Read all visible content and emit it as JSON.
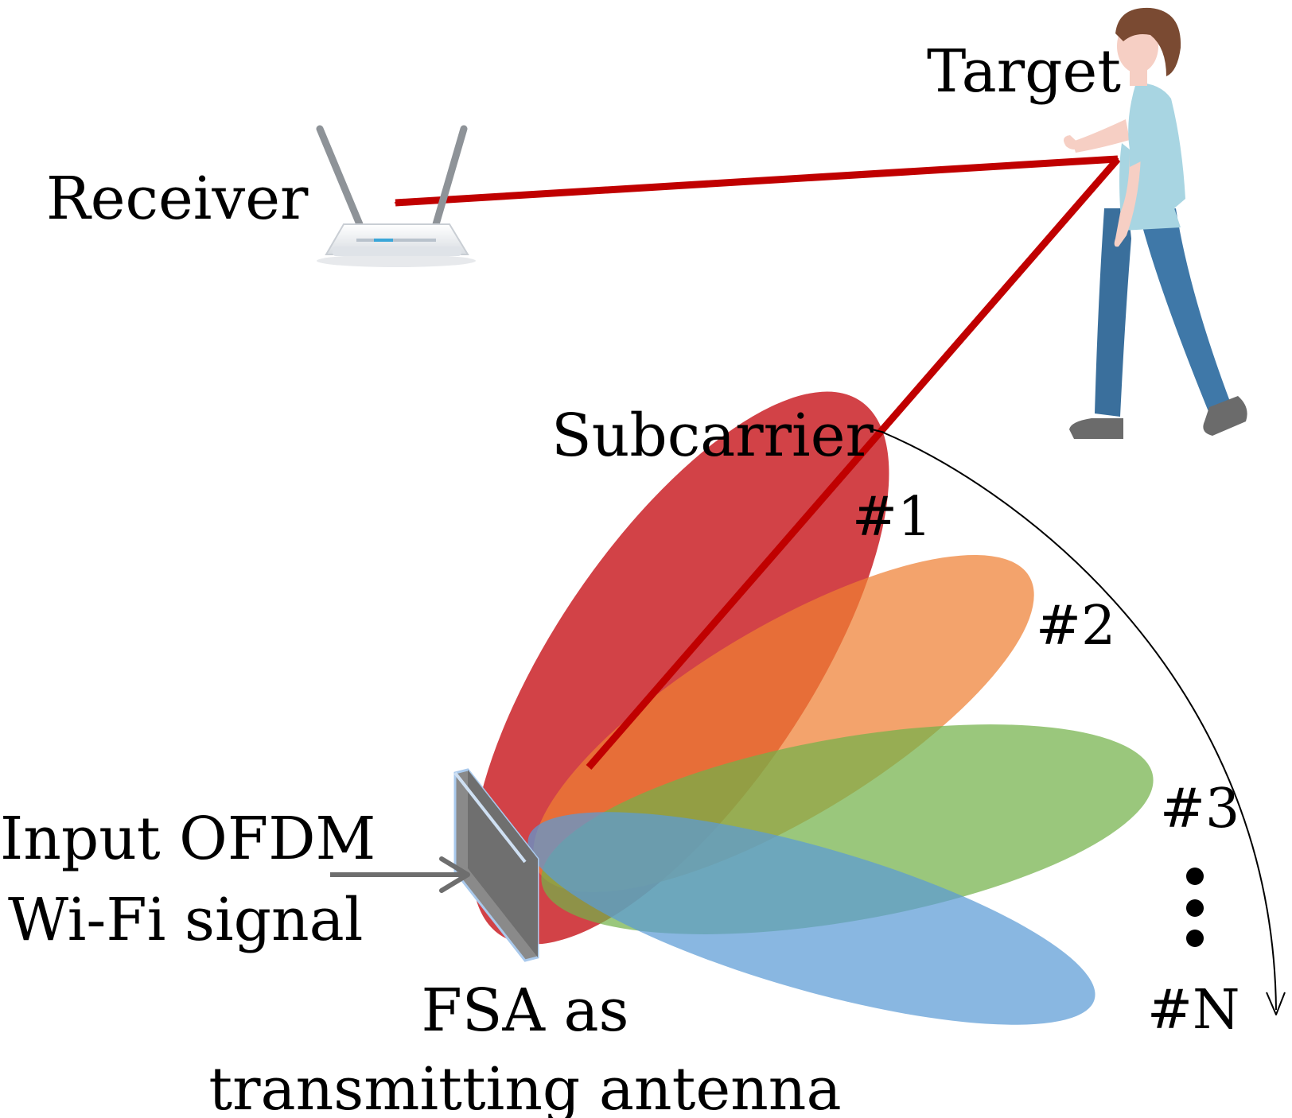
{
  "labels": {
    "target": "Target",
    "receiver": "Receiver",
    "subcarrier": "Subcarrier",
    "input_line1": "Input OFDM",
    "input_line2": "Wi-Fi signal",
    "fsa_line1": "FSA as",
    "fsa_line2": "transmitting antenna"
  },
  "beams": [
    {
      "label": "#1",
      "color": "#c8191e"
    },
    {
      "label": "#2",
      "color": "#ee7f33"
    },
    {
      "label": "#3",
      "color": "#73b14a"
    },
    {
      "label": "#N",
      "color": "#5b9bd5"
    }
  ],
  "ellipsis": "⋮",
  "colors": {
    "signal_path": "#c00000",
    "input_arrow": "#6e6e6e",
    "antenna": "#6f6f6f",
    "antenna_edge": "#a9c9ec",
    "router_body": "#f2f3f5",
    "router_led": "#3aa6d8",
    "person_shirt": "#a8d5e2",
    "person_pants": "#3f78a8",
    "person_hair": "#7a4a32",
    "person_skin": "#f6cfc4"
  },
  "icons": [
    "router-icon",
    "person-icon",
    "antenna-panel-icon"
  ]
}
